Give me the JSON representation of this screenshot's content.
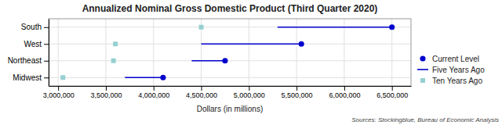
{
  "chart_data": {
    "type": "dot",
    "orientation": "horizontal",
    "title": "Annualized Nominal Gross Domestic Product (Third Quarter 2020)",
    "x_label": "Dollars (in millions)",
    "annotations": [
      "Sources: Stockingblue, Bureau of Economic Analysis"
    ],
    "categories": [
      "South",
      "West",
      "Northeast",
      "Midwest"
    ],
    "series": [
      {
        "name": "Current Level",
        "color": "#0000CD",
        "marker": "circle",
        "values": [
          6500000,
          5550000,
          4750000,
          4100000
        ]
      },
      {
        "name": "Five Years Ago",
        "color": "#0000CD",
        "line_style": "solid",
        "values": [
          5300000,
          4500000,
          4400000,
          3700000
        ]
      },
      {
        "name": "Ten Years Ago",
        "color": "#96D0D0",
        "marker": "square",
        "values": [
          4500000,
          3600000,
          3580000,
          3050000
        ]
      }
    ],
    "xlim": [
      2900000,
      6700000
    ],
    "xticks": [
      {
        "value": 3000000,
        "label": "3,000,000"
      },
      {
        "value": 3500000,
        "label": "3,500,000"
      },
      {
        "value": 4000000,
        "label": "4,000,000"
      },
      {
        "value": 4500000,
        "label": "4,500,000"
      },
      {
        "value": 5000000,
        "label": "5,000,000"
      },
      {
        "value": 5500000,
        "label": "5,500,000"
      },
      {
        "value": 6000000,
        "label": "6,000,000"
      },
      {
        "value": 6500000,
        "label": "6,500,000"
      }
    ],
    "grid": true,
    "legend": "lower right"
  }
}
